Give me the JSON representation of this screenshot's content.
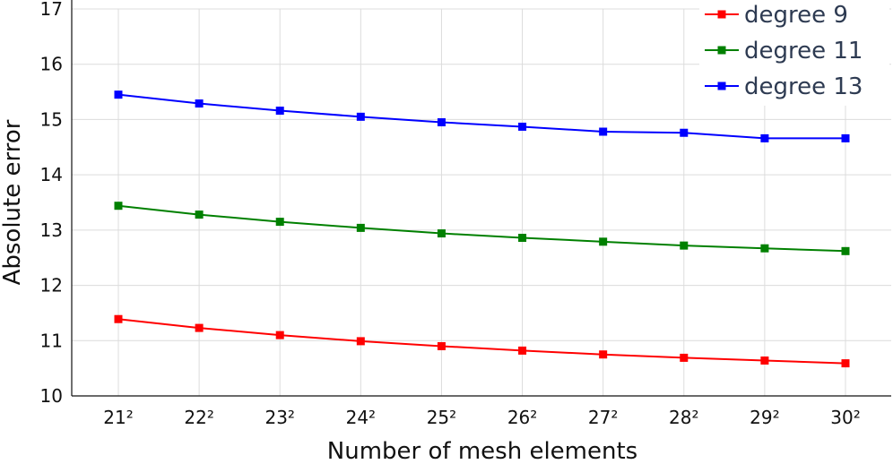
{
  "chart_data": {
    "type": "line",
    "title": "",
    "xlabel": "Number of mesh elements",
    "ylabel": "Absolute error",
    "categories": [
      "21²",
      "22²",
      "23²",
      "24²",
      "25²",
      "26²",
      "27²",
      "28²",
      "29²",
      "30²"
    ],
    "ylim": [
      10,
      17
    ],
    "yticks": [
      10,
      11,
      12,
      13,
      14,
      15,
      16,
      17
    ],
    "grid": true,
    "legend_position": "top-right",
    "series": [
      {
        "name": "degree 9",
        "color": "#ff0000",
        "marker": "square",
        "values": [
          11.39,
          11.23,
          11.1,
          10.99,
          10.9,
          10.82,
          10.75,
          10.69,
          10.64,
          10.59
        ]
      },
      {
        "name": "degree 11",
        "color": "#008000",
        "marker": "square",
        "values": [
          13.44,
          13.28,
          13.15,
          13.04,
          12.94,
          12.86,
          12.79,
          12.72,
          12.67,
          12.62
        ]
      },
      {
        "name": "degree 13",
        "color": "#0000ff",
        "marker": "square",
        "values": [
          15.45,
          15.29,
          15.16,
          15.05,
          14.95,
          14.87,
          14.78,
          14.76,
          14.66,
          14.66
        ]
      }
    ]
  }
}
